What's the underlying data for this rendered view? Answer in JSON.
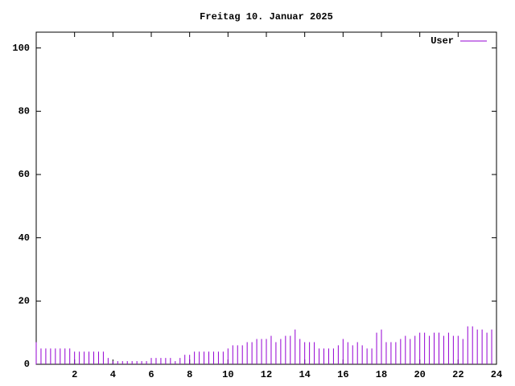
{
  "chart_data": {
    "type": "impulse",
    "title": "Freitag 10. Januar 2025",
    "x": [
      0,
      0.25,
      0.5,
      0.75,
      1,
      1.25,
      1.5,
      1.75,
      2,
      2.25,
      2.5,
      2.75,
      3,
      3.25,
      3.5,
      3.75,
      4,
      4.25,
      4.5,
      4.75,
      5,
      5.25,
      5.5,
      5.75,
      6,
      6.25,
      6.5,
      6.75,
      7,
      7.25,
      7.5,
      7.75,
      8,
      8.25,
      8.5,
      8.75,
      9,
      9.25,
      9.5,
      9.75,
      10,
      10.25,
      10.5,
      10.75,
      11,
      11.25,
      11.5,
      11.75,
      12,
      12.25,
      12.5,
      12.75,
      13,
      13.25,
      13.5,
      13.75,
      14,
      14.25,
      14.5,
      14.75,
      15,
      15.25,
      15.5,
      15.75,
      16,
      16.25,
      16.5,
      16.75,
      17,
      17.25,
      17.5,
      17.75,
      18,
      18.25,
      18.5,
      18.75,
      19,
      19.25,
      19.5,
      19.75,
      20,
      20.25,
      20.5,
      20.75,
      21,
      21.25,
      21.5,
      21.75,
      22,
      22.25,
      22.5,
      22.75,
      23,
      23.25,
      23.5,
      23.75
    ],
    "series": [
      {
        "name": "User",
        "color": "#9400d3",
        "values": [
          7,
          5,
          5,
          5,
          5,
          5,
          5,
          5,
          4,
          4,
          4,
          4,
          4,
          4,
          4,
          2,
          1,
          1,
          1,
          1,
          1,
          1,
          1,
          1,
          2,
          2,
          2,
          2,
          2,
          1,
          2,
          3,
          3,
          4,
          4,
          4,
          4,
          4,
          4,
          4,
          5,
          6,
          6,
          6,
          7,
          7,
          8,
          8,
          8,
          9,
          7,
          8,
          9,
          9,
          11,
          8,
          7,
          7,
          7,
          5,
          5,
          5,
          5,
          6,
          8,
          7,
          6,
          7,
          6,
          5,
          5,
          10,
          11,
          7,
          7,
          7,
          8,
          9,
          8,
          9,
          10,
          10,
          9,
          10,
          10,
          9,
          10,
          9,
          9,
          8,
          12,
          12,
          11,
          11,
          10,
          11
        ]
      }
    ],
    "xlim": [
      0,
      24
    ],
    "xticks": [
      2,
      4,
      6,
      8,
      10,
      12,
      14,
      16,
      18,
      20,
      22,
      24
    ],
    "ylim": [
      0,
      105
    ],
    "yticks": [
      0,
      20,
      40,
      60,
      80,
      100
    ],
    "legend": "top-right"
  }
}
